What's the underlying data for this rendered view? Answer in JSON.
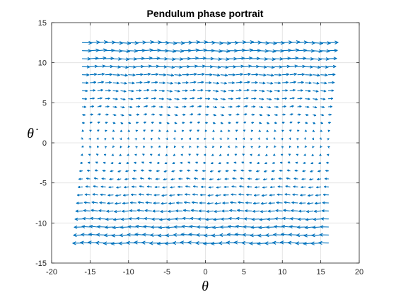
{
  "chart_data": {
    "type": "quiver",
    "title": "Pendulum phase portrait",
    "xlabel": "θ",
    "ylabel": "θ̇",
    "xlim": [
      -20,
      20
    ],
    "ylim": [
      -15,
      15
    ],
    "xticks": [
      -20,
      -15,
      -10,
      -5,
      0,
      5,
      10,
      15,
      20
    ],
    "yticks": [
      -15,
      -10,
      -5,
      0,
      5,
      10,
      15
    ],
    "grid": true,
    "vector_field": {
      "equation_x": "u = θ̇",
      "equation_y": "v = -sin(θ)",
      "x_range": [
        -16,
        16
      ],
      "y_range": [
        -12.5,
        12.5
      ],
      "x_count": 33,
      "y_count": 26
    },
    "colors": {
      "arrow": "#0072BD",
      "grid": "#dfdfdf",
      "axis": "#262626"
    }
  }
}
